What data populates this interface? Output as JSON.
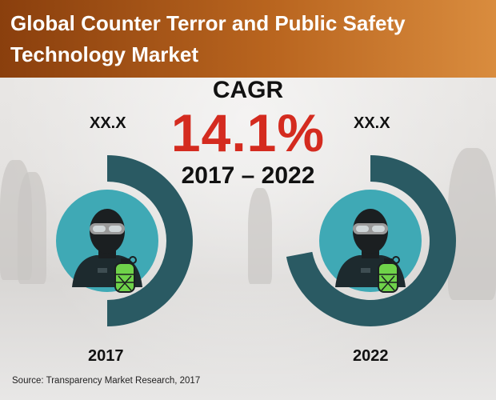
{
  "header": {
    "title_line1": "Global Counter Terror and Public Safety",
    "title_line2": "Technology Market"
  },
  "cagr": {
    "label": "CAGR",
    "value": "14.1%",
    "period": "2017 – 2022"
  },
  "source": "Source: Transparency Market Research, 2017",
  "colors": {
    "header_start": "#8a3f0d",
    "header_end": "#d98c3e",
    "cagr_value": "#d42b1f",
    "ring": "#2a5a63",
    "inner_disc": "#3fa9b5",
    "grenade": "#6fd24a"
  },
  "icons": [
    "soldier-icon",
    "grenade-icon"
  ],
  "chart_data": {
    "type": "pie",
    "categories": [
      "2017",
      "2022"
    ],
    "value_labels": [
      "XX.X",
      "XX.X"
    ],
    "ring_fraction": [
      0.5,
      0.72
    ],
    "title": "Global Counter Terror and Public Safety Technology Market",
    "xlabel": "",
    "ylabel": ""
  }
}
